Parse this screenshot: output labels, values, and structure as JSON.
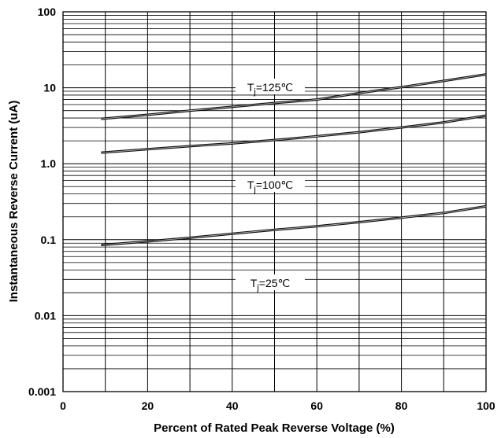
{
  "chart_data": {
    "type": "line",
    "xlabel": "Percent of Rated Peak Reverse Voltage (%)",
    "ylabel": "Instantaneous Reverse Current (uA)",
    "xlim": [
      0,
      100
    ],
    "ylim": [
      0.001,
      100
    ],
    "yscale": "log",
    "grid": true,
    "x_tick_labels": [
      "0",
      "20",
      "40",
      "60",
      "80",
      "100"
    ],
    "y_tick_labels": [
      "100",
      "10",
      "1.0",
      "0.1",
      "0.01",
      "0.001"
    ],
    "series": [
      {
        "name": "Tj=125℃",
        "x": [
          9,
          20,
          30,
          40,
          50,
          60,
          70,
          80,
          90,
          100
        ],
        "y": [
          3.9,
          4.4,
          5.0,
          5.6,
          6.3,
          7.0,
          8.5,
          10.2,
          12.3,
          15.0
        ]
      },
      {
        "name": "Tj=100℃",
        "x": [
          9,
          20,
          30,
          40,
          50,
          60,
          70,
          80,
          90,
          100
        ],
        "y": [
          1.4,
          1.55,
          1.7,
          1.85,
          2.05,
          2.3,
          2.6,
          3.0,
          3.5,
          4.3
        ]
      },
      {
        "name": "Tj=25℃",
        "x": [
          9,
          20,
          30,
          40,
          50,
          60,
          70,
          80,
          90,
          100
        ],
        "y": [
          0.085,
          0.095,
          0.106,
          0.12,
          0.135,
          0.15,
          0.17,
          0.195,
          0.225,
          0.275
        ]
      }
    ],
    "annotations": [
      {
        "text_main": "T",
        "text_sub": "j",
        "text_rest": "=125℃"
      },
      {
        "text_main": "T",
        "text_sub": "j",
        "text_rest": "=100℃"
      },
      {
        "text_main": "T",
        "text_sub": "j",
        "text_rest": "=25℃"
      }
    ]
  }
}
